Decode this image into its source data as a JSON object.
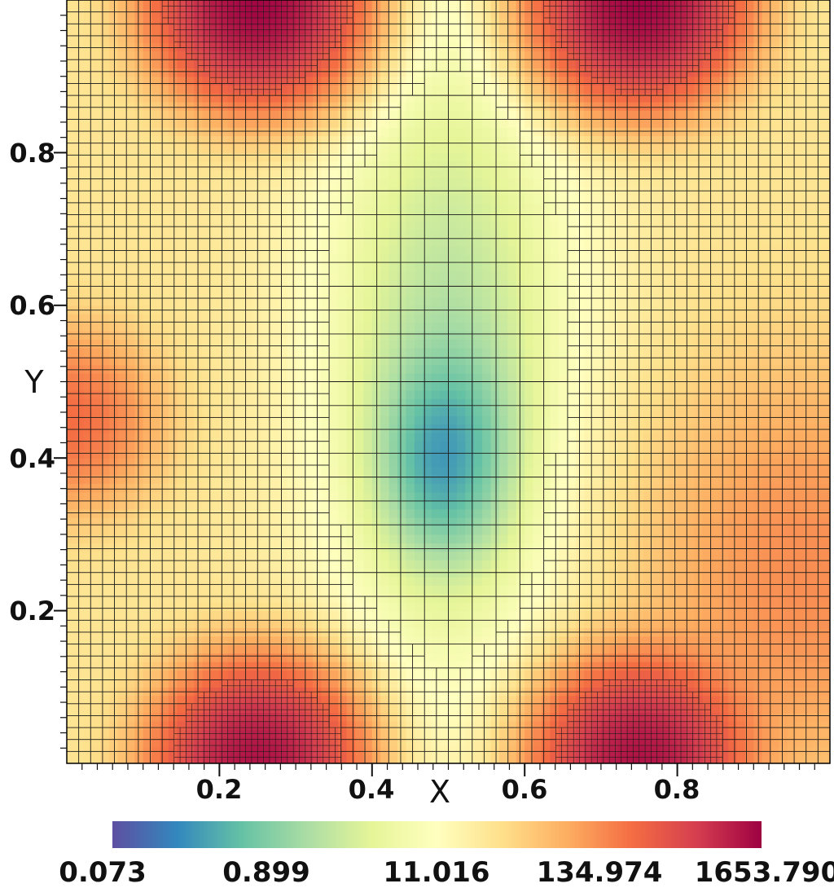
{
  "chart_data": {
    "type": "heatmap",
    "title": "",
    "xlabel": "X",
    "ylabel": "Y",
    "xlim": [
      0,
      1
    ],
    "ylim": [
      0,
      1
    ],
    "x_ticks": [
      "0.2",
      "0.4",
      "0.6",
      "0.8"
    ],
    "x_tick_values": [
      0.2,
      0.4,
      0.6,
      0.8
    ],
    "y_ticks": [
      "0.2",
      "0.4",
      "0.6",
      "0.8"
    ],
    "y_tick_values": [
      0.2,
      0.4,
      0.6,
      0.8
    ],
    "colorscale": "log",
    "colormap": "Spectral (reversed)",
    "colorbar": {
      "labels": [
        "0.073",
        "0.899",
        "11.016",
        "134.974",
        "1653.790"
      ],
      "min": 0.073,
      "max": 1653.79
    },
    "field_features": [
      {
        "name": "peak",
        "x": 0.25,
        "y": 1.0,
        "value": 1500
      },
      {
        "name": "peak",
        "x": 0.75,
        "y": 1.0,
        "value": 1500
      },
      {
        "name": "peak",
        "x": 0.25,
        "y": 0.0,
        "value": 1200
      },
      {
        "name": "peak",
        "x": 0.75,
        "y": 0.0,
        "value": 1200
      },
      {
        "name": "peak",
        "x": 0.0,
        "y": 0.45,
        "value": 200
      },
      {
        "name": "minimum",
        "x": 0.5,
        "y": 0.39,
        "value": 0.073
      }
    ],
    "grid": true,
    "mesh": "adaptive quadtree refinement"
  }
}
